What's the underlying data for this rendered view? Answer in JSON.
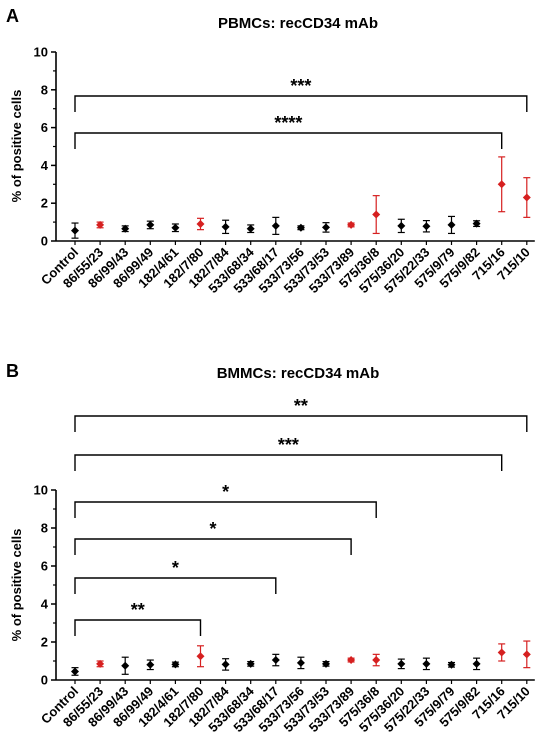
{
  "chart_data": [
    {
      "panel": "A",
      "type": "scatter",
      "title": "PBMCs: recCD34 mAb",
      "xlabel": "",
      "ylabel": "% of positive cells",
      "ylim": [
        0,
        10
      ],
      "yticks": [
        "0",
        "2",
        "4",
        "6",
        "8",
        "10"
      ],
      "categories": [
        "Control",
        "86/55/23",
        "86/99/43",
        "86/99/49",
        "182/4/61",
        "182/7/80",
        "182/7/84",
        "533/68/34",
        "533/68/17",
        "533/73/56",
        "533/73/53",
        "533/73/89",
        "575/36/8",
        "575/36/20",
        "575/22/33",
        "575/9/79",
        "575/9/82",
        "715/16",
        "715/10"
      ],
      "values": [
        0.55,
        0.85,
        0.65,
        0.85,
        0.7,
        0.9,
        0.75,
        0.65,
        0.8,
        0.7,
        0.72,
        0.85,
        1.4,
        0.8,
        0.78,
        0.85,
        0.92,
        3.0,
        2.3
      ],
      "errors": [
        0.4,
        0.15,
        0.15,
        0.2,
        0.2,
        0.3,
        0.35,
        0.2,
        0.45,
        0.1,
        0.25,
        0.1,
        1.0,
        0.35,
        0.3,
        0.45,
        0.15,
        1.45,
        1.05
      ],
      "highlighted": [
        1,
        5,
        11,
        12,
        17,
        18
      ],
      "colors": {
        "default": "#000000",
        "highlight": "#d62020"
      },
      "comparisons": [
        {
          "from": 0,
          "to": 18,
          "label": "***"
        },
        {
          "from": 0,
          "to": 17,
          "label": "****"
        }
      ]
    },
    {
      "panel": "B",
      "type": "scatter",
      "title": "BMMCs: recCD34 mAb",
      "xlabel": "",
      "ylabel": "% of positive cells",
      "ylim": [
        0,
        10
      ],
      "yticks": [
        "0",
        "2",
        "4",
        "6",
        "8",
        "10"
      ],
      "categories": [
        "Control",
        "86/55/23",
        "86/99/43",
        "86/99/49",
        "182/4/61",
        "182/7/80",
        "182/7/84",
        "533/68/34",
        "533/68/17",
        "533/73/56",
        "533/73/53",
        "533/73/89",
        "575/36/8",
        "575/36/20",
        "575/22/33",
        "575/9/79",
        "575/9/82",
        "715/16",
        "715/10"
      ],
      "values": [
        0.45,
        0.85,
        0.75,
        0.8,
        0.82,
        1.25,
        0.82,
        0.85,
        1.05,
        0.9,
        0.85,
        1.05,
        1.05,
        0.85,
        0.85,
        0.8,
        0.85,
        1.45,
        1.35
      ],
      "errors": [
        0.2,
        0.15,
        0.45,
        0.25,
        0.12,
        0.55,
        0.3,
        0.12,
        0.3,
        0.3,
        0.12,
        0.1,
        0.3,
        0.25,
        0.3,
        0.12,
        0.3,
        0.45,
        0.7
      ],
      "highlighted": [
        1,
        5,
        11,
        12,
        17,
        18
      ],
      "colors": {
        "default": "#000000",
        "highlight": "#d62020"
      },
      "comparisons": [
        {
          "from": 0,
          "to": 18,
          "label": "**"
        },
        {
          "from": 0,
          "to": 17,
          "label": "***"
        },
        {
          "from": 0,
          "to": 12,
          "label": "*"
        },
        {
          "from": 0,
          "to": 11,
          "label": "*"
        },
        {
          "from": 0,
          "to": 8,
          "label": "*"
        },
        {
          "from": 0,
          "to": 5,
          "label": "**"
        }
      ]
    }
  ]
}
